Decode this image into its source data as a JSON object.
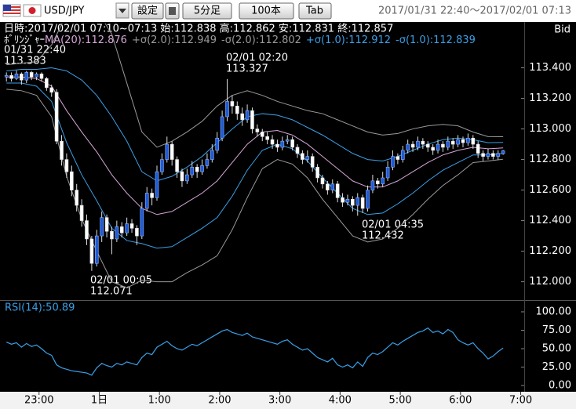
{
  "toolbar": {
    "pair": "USD/JPY",
    "buttons": [
      "設定",
      "5分足",
      "100本",
      "Tab"
    ],
    "range": "2017/01/31 22:40～2017/02/01 07:13"
  },
  "chart_data": [
    {
      "type": "candlestick",
      "subtitle": "日時:2017/02/01 07:10~07:13 始:112.838 高:112.862 安:112.831 終:112.857",
      "side": "Bid",
      "legend_title": "ﾎﾞﾘﾝｼﾞｬｰ",
      "annotations": [
        {
          "time": "01/31 22:40",
          "price": "113.383"
        },
        {
          "time": "02/01 02:20",
          "price": "113.327"
        },
        {
          "time": "02/01 00:05",
          "price": "112.071"
        },
        {
          "time": "02/01 04:35",
          "price": "112.432"
        }
      ],
      "up_color": "#1f5bd6",
      "down_color": "#ffffff",
      "candles": [
        [
          113.34,
          113.37,
          113.31,
          113.35
        ],
        [
          113.35,
          113.37,
          113.31,
          113.33
        ],
        [
          113.33,
          113.383,
          113.32,
          113.36
        ],
        [
          113.36,
          113.37,
          113.29,
          113.32
        ],
        [
          113.32,
          113.38,
          113.3,
          113.37
        ],
        [
          113.37,
          113.38,
          113.32,
          113.34
        ],
        [
          113.34,
          113.37,
          113.32,
          113.36
        ],
        [
          113.36,
          113.37,
          113.31,
          113.33
        ],
        [
          113.33,
          113.34,
          113.25,
          113.27
        ],
        [
          113.27,
          113.29,
          113.21,
          113.24
        ],
        [
          113.24,
          113.26,
          112.9,
          112.92
        ],
        [
          112.92,
          112.96,
          112.76,
          112.8
        ],
        [
          112.8,
          112.84,
          112.68,
          112.72
        ],
        [
          112.72,
          112.76,
          112.56,
          112.6
        ],
        [
          112.6,
          112.64,
          112.46,
          112.5
        ],
        [
          112.5,
          112.54,
          112.36,
          112.4
        ],
        [
          112.4,
          112.44,
          112.24,
          112.28
        ],
        [
          112.28,
          112.3,
          112.071,
          112.12
        ],
        [
          112.12,
          112.34,
          112.1,
          112.3
        ],
        [
          112.3,
          112.46,
          112.26,
          112.42
        ],
        [
          112.42,
          112.44,
          112.29,
          112.33
        ],
        [
          112.33,
          112.36,
          112.18,
          112.28
        ],
        [
          112.28,
          112.4,
          112.26,
          112.36
        ],
        [
          112.36,
          112.39,
          112.29,
          112.32
        ],
        [
          112.32,
          112.42,
          112.3,
          112.38
        ],
        [
          112.38,
          112.41,
          112.32,
          112.35
        ],
        [
          112.35,
          112.37,
          112.24,
          112.3
        ],
        [
          112.3,
          112.52,
          112.28,
          112.48
        ],
        [
          112.48,
          112.62,
          112.46,
          112.58
        ],
        [
          112.58,
          112.61,
          112.5,
          112.55
        ],
        [
          112.55,
          112.76,
          112.53,
          112.72
        ],
        [
          112.72,
          112.84,
          112.7,
          112.8
        ],
        [
          112.8,
          112.95,
          112.78,
          112.9
        ],
        [
          112.9,
          112.92,
          112.76,
          112.8
        ],
        [
          112.8,
          112.82,
          112.68,
          112.72
        ],
        [
          112.72,
          112.74,
          112.62,
          112.66
        ],
        [
          112.66,
          112.74,
          112.64,
          112.7
        ],
        [
          112.7,
          112.79,
          112.68,
          112.75
        ],
        [
          112.75,
          112.77,
          112.68,
          112.72
        ],
        [
          112.72,
          112.8,
          112.7,
          112.76
        ],
        [
          112.76,
          112.84,
          112.74,
          112.8
        ],
        [
          112.8,
          112.9,
          112.78,
          112.86
        ],
        [
          112.86,
          112.98,
          112.84,
          112.94
        ],
        [
          112.94,
          113.12,
          112.92,
          113.08
        ],
        [
          113.08,
          113.327,
          113.05,
          113.18
        ],
        [
          113.18,
          113.22,
          113.1,
          113.15
        ],
        [
          113.15,
          113.18,
          113.06,
          113.1
        ],
        [
          113.1,
          113.14,
          113.02,
          113.06
        ],
        [
          113.06,
          113.16,
          113.04,
          113.12
        ],
        [
          113.12,
          113.14,
          112.97,
          113.0
        ],
        [
          113.0,
          113.03,
          112.95,
          112.98
        ],
        [
          112.98,
          113.0,
          112.92,
          112.95
        ],
        [
          112.95,
          112.98,
          112.9,
          112.93
        ],
        [
          112.93,
          112.96,
          112.87,
          112.9
        ],
        [
          112.9,
          112.93,
          112.85,
          112.88
        ],
        [
          112.88,
          112.95,
          112.86,
          112.92
        ],
        [
          112.92,
          112.96,
          112.9,
          112.93
        ],
        [
          112.93,
          112.95,
          112.86,
          112.88
        ],
        [
          112.88,
          112.9,
          112.81,
          112.84
        ],
        [
          112.84,
          112.86,
          112.77,
          112.8
        ],
        [
          112.8,
          112.86,
          112.78,
          112.82
        ],
        [
          112.82,
          112.84,
          112.72,
          112.75
        ],
        [
          112.75,
          112.77,
          112.65,
          112.68
        ],
        [
          112.68,
          112.7,
          112.61,
          112.64
        ],
        [
          112.64,
          112.66,
          112.57,
          112.6
        ],
        [
          112.6,
          112.67,
          112.58,
          112.64
        ],
        [
          112.64,
          112.66,
          112.52,
          112.55
        ],
        [
          112.55,
          112.58,
          112.49,
          112.52
        ],
        [
          112.52,
          112.57,
          112.5,
          112.54
        ],
        [
          112.54,
          112.56,
          112.46,
          112.5
        ],
        [
          112.5,
          112.58,
          112.432,
          112.55
        ],
        [
          112.55,
          112.57,
          112.45,
          112.48
        ],
        [
          112.48,
          112.63,
          112.46,
          112.6
        ],
        [
          112.6,
          112.7,
          112.58,
          112.66
        ],
        [
          112.66,
          112.68,
          112.61,
          112.64
        ],
        [
          112.64,
          112.72,
          112.62,
          112.68
        ],
        [
          112.68,
          112.79,
          112.66,
          112.75
        ],
        [
          112.75,
          112.86,
          112.73,
          112.82
        ],
        [
          112.82,
          112.84,
          112.77,
          112.8
        ],
        [
          112.8,
          112.89,
          112.78,
          112.86
        ],
        [
          112.86,
          112.93,
          112.84,
          112.9
        ],
        [
          112.9,
          112.92,
          112.85,
          112.88
        ],
        [
          112.88,
          112.95,
          112.86,
          112.92
        ],
        [
          112.92,
          112.94,
          112.87,
          112.9
        ],
        [
          112.9,
          112.92,
          112.85,
          112.88
        ],
        [
          112.88,
          112.9,
          112.83,
          112.86
        ],
        [
          112.86,
          112.93,
          112.84,
          112.9
        ],
        [
          112.9,
          112.92,
          112.85,
          112.88
        ],
        [
          112.88,
          112.95,
          112.86,
          112.92
        ],
        [
          112.92,
          112.94,
          112.87,
          112.9
        ],
        [
          112.9,
          112.96,
          112.88,
          112.93
        ],
        [
          112.93,
          112.95,
          112.88,
          112.91
        ],
        [
          112.91,
          112.97,
          112.89,
          112.94
        ],
        [
          112.94,
          112.96,
          112.87,
          112.9
        ],
        [
          112.9,
          112.92,
          112.81,
          112.84
        ],
        [
          112.84,
          112.86,
          112.79,
          112.82
        ],
        [
          112.82,
          112.87,
          112.8,
          112.84
        ],
        [
          112.84,
          112.86,
          112.8,
          112.82
        ],
        [
          112.82,
          112.86,
          112.8,
          112.84
        ],
        [
          112.838,
          112.862,
          112.831,
          112.857
        ]
      ],
      "bands": {
        "x": [
          0,
          3,
          6,
          9,
          12,
          15,
          18,
          21,
          24,
          27,
          30,
          33,
          36,
          39,
          42,
          45,
          48,
          51,
          54,
          57,
          60,
          63,
          66,
          69,
          72,
          75,
          78,
          81,
          84,
          87,
          90,
          93,
          96,
          99
        ],
        "series": [
          {
            "name": "MA(20):112.876",
            "color": "#d7a6d8",
            "values": [
              113.34,
              113.34,
              113.33,
              113.28,
              113.12,
              112.98,
              112.85,
              112.7,
              112.58,
              112.48,
              112.44,
              112.46,
              112.52,
              112.58,
              112.66,
              112.78,
              112.9,
              112.98,
              112.99,
              112.96,
              112.9,
              112.82,
              112.74,
              112.66,
              112.62,
              112.62,
              112.66,
              112.72,
              112.78,
              112.83,
              112.86,
              112.88,
              112.87,
              112.876
            ]
          },
          {
            "name": "+σ(2.0):112.949",
            "color": "#9a9a9a",
            "values": [
              113.42,
              113.43,
              113.44,
              113.55,
              113.75,
              113.8,
              113.78,
              113.62,
              113.3,
              112.98,
              112.88,
              112.92,
              112.98,
              113.05,
              113.15,
              113.22,
              113.25,
              113.22,
              113.18,
              113.15,
              113.12,
              113.1,
              113.06,
              113.02,
              112.98,
              112.96,
              112.97,
              113.0,
              113.02,
              113.03,
              113.02,
              112.98,
              112.95,
              112.949
            ]
          },
          {
            "name": "-σ(2.0):112.802",
            "color": "#9a9a9a",
            "values": [
              113.26,
              113.25,
              113.22,
              113.08,
              112.69,
              112.41,
              112.2,
              112.0,
              111.96,
              112.01,
              112.0,
              112.0,
              112.06,
              112.11,
              112.17,
              112.34,
              112.55,
              112.74,
              112.8,
              112.77,
              112.68,
              112.54,
              112.42,
              112.3,
              112.26,
              112.28,
              112.35,
              112.44,
              112.54,
              112.63,
              112.7,
              112.78,
              112.79,
              112.802
            ]
          },
          {
            "name": "+σ(1.0):112.912",
            "color": "#3aa0e8",
            "values": [
              113.38,
              113.39,
              113.39,
              113.4,
              113.38,
              113.32,
              113.22,
              113.08,
              112.92,
              112.72,
              112.66,
              112.69,
              112.75,
              112.82,
              112.91,
              113.0,
              113.08,
              113.1,
              113.09,
              113.06,
              113.01,
              112.96,
              112.9,
              112.84,
              112.8,
              112.79,
              112.82,
              112.86,
              112.9,
              112.93,
              112.94,
              112.93,
              112.91,
              112.912
            ]
          },
          {
            "name": "-σ(1.0):112.839",
            "color": "#3aa0e8",
            "values": [
              113.3,
              113.3,
              113.28,
              113.18,
              112.91,
              112.7,
              112.53,
              112.35,
              112.27,
              112.25,
              112.22,
              112.23,
              112.29,
              112.35,
              112.42,
              112.56,
              112.73,
              112.86,
              112.9,
              112.87,
              112.79,
              112.68,
              112.58,
              112.48,
              112.44,
              112.45,
              112.51,
              112.58,
              112.66,
              112.73,
              112.78,
              112.83,
              112.83,
              112.839
            ]
          }
        ]
      },
      "xlim": [
        -0.5,
        103.2
      ],
      "ylim": [
        111.88,
        113.69
      ],
      "yticks": [
        {
          "value": 113.4,
          "label": "113.400"
        },
        {
          "value": 113.2,
          "label": "113.200"
        },
        {
          "value": 113.0,
          "label": "113.000"
        },
        {
          "value": 112.8,
          "label": "112.800"
        },
        {
          "value": 112.6,
          "label": "112.600"
        },
        {
          "value": 112.4,
          "label": "112.400"
        },
        {
          "value": 112.2,
          "label": "112.200"
        },
        {
          "value": 112.0,
          "label": "112.000"
        }
      ]
    },
    {
      "type": "line",
      "title": "RSI(14):50.89",
      "color": "#3aa0e8",
      "values": [
        59,
        56,
        58,
        52,
        57,
        53,
        55,
        50,
        44,
        41,
        28,
        24,
        22,
        20,
        19,
        18,
        17,
        14,
        24,
        30,
        27,
        25,
        30,
        28,
        32,
        30,
        28,
        38,
        44,
        42,
        52,
        56,
        60,
        54,
        50,
        48,
        52,
        56,
        54,
        58,
        62,
        66,
        70,
        74,
        76,
        72,
        70,
        68,
        71,
        66,
        64,
        62,
        60,
        58,
        56,
        60,
        62,
        56,
        52,
        48,
        50,
        44,
        38,
        35,
        32,
        37,
        28,
        25,
        28,
        24,
        32,
        26,
        38,
        44,
        42,
        46,
        52,
        58,
        55,
        60,
        64,
        68,
        72,
        74,
        78,
        72,
        74,
        70,
        76,
        72,
        62,
        58,
        55,
        58,
        50,
        44,
        36,
        40,
        46,
        50.89
      ],
      "xlim": [
        -0.5,
        103.2
      ],
      "ylim": [
        -8.5,
        113.8
      ],
      "yticks": [
        {
          "value": 100,
          "label": "100.00"
        },
        {
          "value": 75,
          "label": "75.00"
        },
        {
          "value": 50,
          "label": "50.00"
        },
        {
          "value": 25,
          "label": "25.00"
        },
        {
          "value": 0,
          "label": "0.00"
        }
      ],
      "xticks": [
        {
          "value": 6.5,
          "label": "23:00"
        },
        {
          "value": 18.5,
          "label": "1日"
        },
        {
          "value": 30.5,
          "label": "1:00"
        },
        {
          "value": 42.5,
          "label": "2:00"
        },
        {
          "value": 54.5,
          "label": "3:00"
        },
        {
          "value": 66.5,
          "label": "4:00"
        },
        {
          "value": 78.5,
          "label": "5:00"
        },
        {
          "value": 90.5,
          "label": "6:00"
        },
        {
          "value": 102.5,
          "label": "7:00"
        }
      ]
    }
  ]
}
